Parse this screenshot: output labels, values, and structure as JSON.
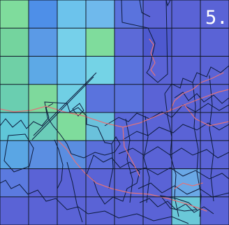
{
  "map": {
    "label": "5.",
    "grid": {
      "cols": 8,
      "rows": 8,
      "fills": [
        [
          "#7fdc9c",
          "#4e8fe8",
          "#6cc3ec",
          "#6fb9ec",
          "#5a73dd",
          "#5a63d6",
          "#5a63d6",
          "#5a63d6"
        ],
        [
          "#74d49e",
          "#5b9ae6",
          "#76d0ea",
          "#7fdc9c",
          "#5c6ad8",
          "#4e59cf",
          "#5a63d6",
          "#5a63d6"
        ],
        [
          "#6fd0a6",
          "#5da9e6",
          "#6ec8ec",
          "#74d3e6",
          "#5a73dd",
          "#5a63d6",
          "#5a63d6",
          "#5a63d6"
        ],
        [
          "#6aceb0",
          "#7ed99c",
          "#70cfe4",
          "#5a73dd",
          "#5a73dd",
          "#5a63d6",
          "#5a63d6",
          "#5a63d6"
        ],
        [
          "#5fc7d8",
          "#6bcdb9",
          "#7fdc9c",
          "#6ac1dc",
          "#5a69d9",
          "#5a63d6",
          "#5a63d6",
          "#5a63d6"
        ],
        [
          "#5aa6e4",
          "#5b8ee2",
          "#5a8de0",
          "#5a6fdb",
          "#5a63d6",
          "#5a63d6",
          "#5a63d6",
          "#5a63d6"
        ],
        [
          "#5b7adf",
          "#5a63d6",
          "#5a63d6",
          "#5a63d6",
          "#5a63d6",
          "#5a63d6",
          "#6aa8e6",
          "#5a63d6"
        ],
        [
          "#5a63d6",
          "#5a63d6",
          "#5a63d6",
          "#5a63d6",
          "#5a63d6",
          "#5a63d6",
          "#6ac8d8",
          "#5a63d6"
        ]
      ]
    },
    "colors": {
      "grid_line": "#111827",
      "boundary": "#0d1b3d",
      "route": "#e2737a",
      "label": "#ffffff"
    }
  }
}
